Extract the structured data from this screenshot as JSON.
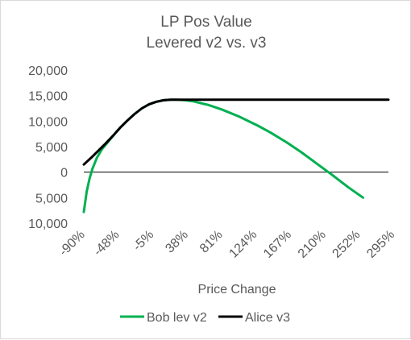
{
  "chart_data": {
    "type": "line",
    "title": "LP Pos Value",
    "subtitle": "Levered v2 vs. v3",
    "xlabel": "Price Change",
    "ylabel": "",
    "x_tick_labels": [
      "-90%",
      "-48%",
      "-5%",
      "38%",
      "81%",
      "124%",
      "167%",
      "210%",
      "252%",
      "295%"
    ],
    "y_ticks": [
      {
        "value": 20000,
        "label": "20,000",
        "color": "#595959"
      },
      {
        "value": 15000,
        "label": "15,000",
        "color": "#595959"
      },
      {
        "value": 10000,
        "label": "10,000",
        "color": "#595959"
      },
      {
        "value": 5000,
        "label": "5,000",
        "color": "#595959"
      },
      {
        "value": 0,
        "label": "0",
        "color": "#595959"
      },
      {
        "value": -5000,
        "label": "5,000",
        "color": "#ff0000"
      },
      {
        "value": -10000,
        "label": "10,000",
        "color": "#ff0000"
      }
    ],
    "xlim": [
      -90,
      330
    ],
    "ylim": [
      -10000,
      20000
    ],
    "grid": false,
    "zero_line": true,
    "legend_position": "bottom",
    "series": [
      {
        "name": "Bob lev v2",
        "color": "#00b050",
        "points": [
          [
            -90,
            -7800
          ],
          [
            -86,
            -3800
          ],
          [
            -82,
            -1200
          ],
          [
            -78,
            700
          ],
          [
            -72,
            2800
          ],
          [
            -65,
            4500
          ],
          [
            -55,
            6200
          ],
          [
            -48,
            7400
          ],
          [
            -40,
            8700
          ],
          [
            -30,
            10100
          ],
          [
            -20,
            11400
          ],
          [
            -10,
            12500
          ],
          [
            0,
            13300
          ],
          [
            10,
            13800
          ],
          [
            20,
            14100
          ],
          [
            30,
            14200
          ],
          [
            38,
            14200
          ],
          [
            50,
            14100
          ],
          [
            60,
            13900
          ],
          [
            81,
            13200
          ],
          [
            100,
            12300
          ],
          [
            124,
            10900
          ],
          [
            150,
            9100
          ],
          [
            167,
            7800
          ],
          [
            190,
            5800
          ],
          [
            210,
            3900
          ],
          [
            230,
            1800
          ],
          [
            252,
            -500
          ],
          [
            275,
            -3000
          ],
          [
            295,
            -5000
          ]
        ]
      },
      {
        "name": "Alice v3",
        "color": "#000000",
        "points": [
          [
            -90,
            1500
          ],
          [
            -80,
            2800
          ],
          [
            -70,
            4200
          ],
          [
            -60,
            5600
          ],
          [
            -48,
            7400
          ],
          [
            -40,
            8700
          ],
          [
            -30,
            10100
          ],
          [
            -20,
            11400
          ],
          [
            -10,
            12500
          ],
          [
            0,
            13300
          ],
          [
            10,
            13800
          ],
          [
            20,
            14100
          ],
          [
            30,
            14200
          ],
          [
            38,
            14200
          ],
          [
            81,
            14200
          ],
          [
            124,
            14200
          ],
          [
            167,
            14200
          ],
          [
            210,
            14200
          ],
          [
            252,
            14200
          ],
          [
            295,
            14200
          ],
          [
            330,
            14200
          ]
        ]
      }
    ]
  }
}
